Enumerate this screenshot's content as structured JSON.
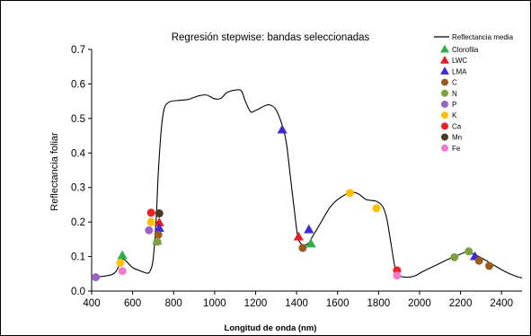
{
  "chart_data": {
    "type": "line+scatter",
    "title": "Regresión stepwise:  bandas seleccionadas",
    "xlabel": "Longitud de onda (nm)",
    "ylabel": "Reflectancia foliar",
    "xlim": [
      400,
      2500
    ],
    "ylim": [
      0,
      0.7
    ],
    "x_ticks": [
      400,
      600,
      800,
      1000,
      1200,
      1400,
      1600,
      1800,
      2000,
      2200,
      2400
    ],
    "y_ticks": [
      0.0,
      0.1,
      0.2,
      0.3,
      0.4,
      0.5,
      0.6,
      0.7
    ],
    "y_tick_labels": [
      "0.0",
      "0.1",
      "0.2",
      "0.3",
      "0.4",
      "0.5",
      "0.6",
      "0.7"
    ],
    "grid": false,
    "legend_position": "top-right",
    "line_series": {
      "name": "Reflectancia media",
      "color": "#000000",
      "points": [
        [
          400,
          0.04
        ],
        [
          430,
          0.041
        ],
        [
          470,
          0.044
        ],
        [
          500,
          0.048
        ],
        [
          520,
          0.058
        ],
        [
          540,
          0.082
        ],
        [
          555,
          0.092
        ],
        [
          570,
          0.086
        ],
        [
          600,
          0.068
        ],
        [
          640,
          0.058
        ],
        [
          670,
          0.052
        ],
        [
          685,
          0.058
        ],
        [
          700,
          0.092
        ],
        [
          715,
          0.21
        ],
        [
          725,
          0.34
        ],
        [
          740,
          0.47
        ],
        [
          755,
          0.53
        ],
        [
          780,
          0.548
        ],
        [
          820,
          0.552
        ],
        [
          870,
          0.555
        ],
        [
          920,
          0.565
        ],
        [
          960,
          0.568
        ],
        [
          1000,
          0.557
        ],
        [
          1030,
          0.558
        ],
        [
          1060,
          0.575
        ],
        [
          1100,
          0.582
        ],
        [
          1130,
          0.58
        ],
        [
          1150,
          0.55
        ],
        [
          1175,
          0.52
        ],
        [
          1200,
          0.523
        ],
        [
          1250,
          0.538
        ],
        [
          1275,
          0.538
        ],
        [
          1300,
          0.525
        ],
        [
          1330,
          0.48
        ],
        [
          1350,
          0.43
        ],
        [
          1370,
          0.33
        ],
        [
          1390,
          0.23
        ],
        [
          1405,
          0.16
        ],
        [
          1420,
          0.138
        ],
        [
          1440,
          0.133
        ],
        [
          1460,
          0.14
        ],
        [
          1480,
          0.16
        ],
        [
          1520,
          0.2
        ],
        [
          1560,
          0.24
        ],
        [
          1600,
          0.265
        ],
        [
          1660,
          0.285
        ],
        [
          1700,
          0.282
        ],
        [
          1740,
          0.265
        ],
        [
          1790,
          0.26
        ],
        [
          1820,
          0.245
        ],
        [
          1840,
          0.21
        ],
        [
          1860,
          0.14
        ],
        [
          1880,
          0.07
        ],
        [
          1900,
          0.045
        ],
        [
          1940,
          0.04
        ],
        [
          1980,
          0.045
        ],
        [
          2020,
          0.058
        ],
        [
          2080,
          0.075
        ],
        [
          2150,
          0.095
        ],
        [
          2200,
          0.107
        ],
        [
          2230,
          0.114
        ],
        [
          2260,
          0.108
        ],
        [
          2290,
          0.1
        ],
        [
          2320,
          0.09
        ],
        [
          2360,
          0.076
        ],
        [
          2400,
          0.062
        ],
        [
          2440,
          0.05
        ],
        [
          2480,
          0.041
        ],
        [
          2500,
          0.038
        ]
      ]
    },
    "scatter_series": [
      {
        "name": "Clorofila",
        "marker": "triangle",
        "color": "#2db04a",
        "points": [
          [
            550,
            0.103
          ],
          [
            1470,
            0.137
          ],
          [
            720,
            0.145
          ]
        ]
      },
      {
        "name": "LWC",
        "marker": "triangle",
        "color": "#e51b24",
        "points": [
          [
            730,
            0.198
          ],
          [
            1410,
            0.157
          ]
        ]
      },
      {
        "name": "LMA",
        "marker": "triangle",
        "color": "#3b2bd6",
        "points": [
          [
            730,
            0.182
          ],
          [
            1330,
            0.467
          ],
          [
            1460,
            0.178
          ],
          [
            2270,
            0.1
          ]
        ]
      },
      {
        "name": "C",
        "marker": "circle",
        "color": "#9c5a23",
        "points": [
          [
            725,
            0.163
          ],
          [
            1430,
            0.125
          ],
          [
            2290,
            0.088
          ],
          [
            2340,
            0.073
          ]
        ]
      },
      {
        "name": "N",
        "marker": "circle",
        "color": "#7ea13f",
        "points": [
          [
            720,
            0.143
          ],
          [
            2170,
            0.098
          ],
          [
            2240,
            0.115
          ]
        ]
      },
      {
        "name": "P",
        "marker": "circle",
        "color": "#9a63c6",
        "points": [
          [
            420,
            0.04
          ],
          [
            680,
            0.176
          ]
        ]
      },
      {
        "name": "K",
        "marker": "circle",
        "color": "#ffc000",
        "points": [
          [
            540,
            0.082
          ],
          [
            690,
            0.2
          ],
          [
            1660,
            0.284
          ],
          [
            1790,
            0.24
          ]
        ]
      },
      {
        "name": "Ca",
        "marker": "circle",
        "color": "#ee1f25",
        "points": [
          [
            690,
            0.227
          ],
          [
            1890,
            0.06
          ]
        ]
      },
      {
        "name": "Mn",
        "marker": "circle",
        "color": "#4a3a25",
        "points": [
          [
            730,
            0.225
          ]
        ]
      },
      {
        "name": "Fe",
        "marker": "circle",
        "color": "#f27bd2",
        "points": [
          [
            550,
            0.058
          ],
          [
            1890,
            0.045
          ]
        ]
      }
    ]
  }
}
